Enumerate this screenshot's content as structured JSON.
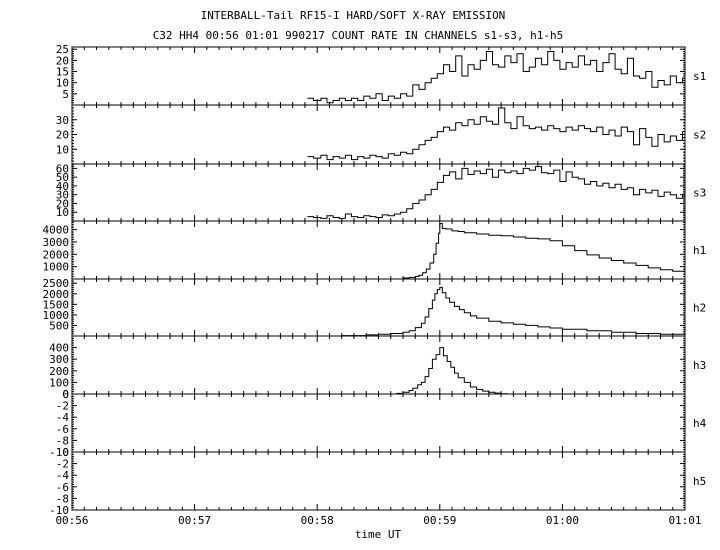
{
  "titles": {
    "line1": "INTERBALL-Tail RF15-I HARD/SOFT X-RAY EMISSION",
    "line2": "C32 HH4 00:56 01:01 990217  COUNT RATE IN CHANNELS s1-s3, h1-h5"
  },
  "chart_data": {
    "type": "line",
    "style": "stepped",
    "title": "INTERBALL-Tail RF15-I HARD/SOFT X-RAY EMISSION",
    "subtitle": "C32 HH4 00:56 01:01 990217  COUNT RATE IN CHANNELS s1-s3, h1-h5",
    "xlabel": "time UT",
    "x_unit": "minutes after 00:56 UT",
    "xlim": [
      0,
      5
    ],
    "x_ticks": [
      {
        "value": 0,
        "label": "00:56"
      },
      {
        "value": 1,
        "label": "00:57"
      },
      {
        "value": 2,
        "label": "00:58"
      },
      {
        "value": 3,
        "label": "00:59"
      },
      {
        "value": 4,
        "label": "01:00"
      },
      {
        "value": 5,
        "label": "01:01"
      }
    ],
    "grid": false,
    "legend": "panel labels at right",
    "line_color": "#000000",
    "panels": [
      {
        "name": "s1",
        "ylim": [
          0,
          26
        ],
        "y_ticks": [
          5,
          10,
          15,
          20,
          25
        ],
        "x": [
          1.92,
          1.97,
          2.03,
          2.08,
          2.13,
          2.18,
          2.23,
          2.28,
          2.33,
          2.38,
          2.43,
          2.48,
          2.53,
          2.58,
          2.63,
          2.68,
          2.73,
          2.78,
          2.83,
          2.88,
          2.93,
          2.98,
          3.03,
          3.08,
          3.13,
          3.18,
          3.23,
          3.28,
          3.33,
          3.38,
          3.43,
          3.48,
          3.53,
          3.58,
          3.63,
          3.68,
          3.73,
          3.78,
          3.83,
          3.88,
          3.93,
          3.98,
          4.03,
          4.08,
          4.13,
          4.18,
          4.23,
          4.28,
          4.33,
          4.38,
          4.43,
          4.48,
          4.53,
          4.58,
          4.63,
          4.68,
          4.73,
          4.78,
          4.83,
          4.88,
          4.93,
          4.98
        ],
        "y": [
          3,
          2,
          3,
          1,
          2,
          3,
          2,
          3,
          2,
          4,
          3,
          5,
          2,
          4,
          3,
          5,
          4,
          9,
          7,
          10,
          12,
          14,
          18,
          15,
          22,
          13,
          18,
          16,
          20,
          24,
          18,
          17,
          22,
          19,
          23,
          15,
          17,
          21,
          18,
          24,
          20,
          16,
          19,
          17,
          22,
          18,
          20,
          15,
          19,
          23,
          16,
          14,
          21,
          13,
          12,
          15,
          8,
          11,
          9,
          13,
          10,
          12
        ]
      },
      {
        "name": "s2",
        "ylim": [
          0,
          40
        ],
        "y_ticks": [
          10,
          20,
          30
        ],
        "x": [
          1.92,
          1.97,
          2.03,
          2.08,
          2.13,
          2.18,
          2.23,
          2.28,
          2.33,
          2.38,
          2.43,
          2.48,
          2.53,
          2.58,
          2.63,
          2.68,
          2.73,
          2.78,
          2.83,
          2.88,
          2.93,
          2.98,
          3.03,
          3.08,
          3.13,
          3.18,
          3.23,
          3.28,
          3.33,
          3.38,
          3.43,
          3.48,
          3.53,
          3.58,
          3.63,
          3.68,
          3.73,
          3.78,
          3.83,
          3.88,
          3.93,
          3.98,
          4.03,
          4.08,
          4.13,
          4.18,
          4.23,
          4.28,
          4.33,
          4.38,
          4.43,
          4.48,
          4.53,
          4.58,
          4.63,
          4.68,
          4.73,
          4.78,
          4.83,
          4.88,
          4.93,
          4.98
        ],
        "y": [
          5,
          4,
          6,
          3,
          5,
          4,
          6,
          3,
          5,
          4,
          6,
          5,
          4,
          7,
          6,
          8,
          7,
          10,
          13,
          16,
          18,
          22,
          25,
          23,
          28,
          26,
          30,
          27,
          32,
          29,
          27,
          38,
          28,
          24,
          32,
          26,
          24,
          25,
          23,
          26,
          24,
          22,
          25,
          23,
          26,
          24,
          22,
          25,
          20,
          23,
          19,
          25,
          22,
          13,
          24,
          18,
          12,
          20,
          15,
          19,
          16,
          22
        ]
      },
      {
        "name": "s3",
        "ylim": [
          0,
          65
        ],
        "y_ticks": [
          10,
          20,
          30,
          40,
          50,
          60
        ],
        "x": [
          1.92,
          1.97,
          2.03,
          2.08,
          2.13,
          2.18,
          2.23,
          2.28,
          2.33,
          2.38,
          2.43,
          2.48,
          2.53,
          2.58,
          2.63,
          2.68,
          2.73,
          2.78,
          2.83,
          2.88,
          2.93,
          2.98,
          3.03,
          3.08,
          3.13,
          3.18,
          3.23,
          3.28,
          3.33,
          3.38,
          3.43,
          3.48,
          3.53,
          3.58,
          3.63,
          3.68,
          3.73,
          3.78,
          3.83,
          3.88,
          3.93,
          3.98,
          4.03,
          4.08,
          4.13,
          4.18,
          4.23,
          4.28,
          4.33,
          4.38,
          4.43,
          4.48,
          4.53,
          4.58,
          4.63,
          4.68,
          4.73,
          4.78,
          4.83,
          4.88,
          4.93,
          4.98
        ],
        "y": [
          5,
          4,
          3,
          6,
          4,
          3,
          8,
          5,
          4,
          6,
          5,
          4,
          7,
          6,
          8,
          10,
          14,
          20,
          24,
          30,
          36,
          44,
          52,
          56,
          48,
          60,
          53,
          57,
          54,
          59,
          50,
          58,
          55,
          57,
          54,
          60,
          58,
          62,
          55,
          54,
          58,
          45,
          56,
          50,
          48,
          42,
          45,
          40,
          43,
          38,
          42,
          36,
          38,
          30,
          36,
          32,
          35,
          28,
          33,
          30,
          26,
          30
        ]
      },
      {
        "name": "h1",
        "ylim": [
          0,
          4700
        ],
        "y_ticks": [
          1000,
          2000,
          3000,
          4000
        ],
        "x": [
          2.7,
          2.75,
          2.8,
          2.83,
          2.86,
          2.89,
          2.92,
          2.95,
          2.97,
          2.99,
          3.0,
          3.02,
          3.05,
          3.1,
          3.15,
          3.2,
          3.3,
          3.4,
          3.5,
          3.6,
          3.7,
          3.8,
          3.9,
          4.0,
          4.1,
          4.2,
          4.3,
          4.4,
          4.5,
          4.6,
          4.7,
          4.8,
          4.9,
          5.0
        ],
        "y": [
          80,
          130,
          200,
          300,
          500,
          800,
          1300,
          2000,
          2900,
          3700,
          4500,
          4100,
          4050,
          3900,
          3850,
          3750,
          3650,
          3550,
          3500,
          3400,
          3300,
          3250,
          3100,
          2700,
          2300,
          1950,
          1700,
          1500,
          1300,
          1100,
          900,
          750,
          620,
          560
        ]
      },
      {
        "name": "h2",
        "ylim": [
          0,
          2700
        ],
        "y_ticks": [
          500,
          1000,
          1500,
          2000,
          2500
        ],
        "x": [
          2.0,
          2.2,
          2.4,
          2.5,
          2.6,
          2.7,
          2.75,
          2.8,
          2.85,
          2.88,
          2.91,
          2.94,
          2.96,
          2.98,
          3.0,
          3.02,
          3.05,
          3.08,
          3.12,
          3.16,
          3.2,
          3.25,
          3.3,
          3.4,
          3.5,
          3.6,
          3.7,
          3.8,
          3.9,
          4.0,
          4.2,
          4.4,
          4.6,
          4.8,
          5.0
        ],
        "y": [
          0,
          20,
          50,
          80,
          120,
          180,
          250,
          400,
          600,
          900,
          1300,
          1700,
          2000,
          2200,
          2300,
          2050,
          1800,
          1600,
          1400,
          1250,
          1100,
          950,
          850,
          700,
          620,
          560,
          500,
          430,
          380,
          320,
          250,
          180,
          120,
          80,
          40
        ]
      },
      {
        "name": "h3",
        "ylim": [
          0,
          500
        ],
        "y_ticks": [
          0,
          100,
          200,
          300,
          400
        ],
        "x": [
          2.6,
          2.65,
          2.7,
          2.75,
          2.78,
          2.82,
          2.85,
          2.88,
          2.91,
          2.94,
          2.97,
          3.0,
          3.03,
          3.06,
          3.09,
          3.12,
          3.15,
          3.2,
          3.25,
          3.3,
          3.35,
          3.4,
          3.45,
          3.5,
          3.55
        ],
        "y": [
          0,
          5,
          15,
          30,
          50,
          80,
          100,
          150,
          220,
          300,
          340,
          400,
          330,
          280,
          230,
          180,
          140,
          100,
          60,
          40,
          25,
          15,
          8,
          3,
          0
        ]
      },
      {
        "name": "h4",
        "ylim": [
          -10,
          0
        ],
        "y_ticks": [
          -10,
          -8,
          -6,
          -4,
          -2,
          0
        ],
        "x": [],
        "y": []
      },
      {
        "name": "h5",
        "ylim": [
          -10,
          0
        ],
        "y_ticks": [
          -10,
          -8,
          -6,
          -4,
          -2,
          0
        ],
        "x": [],
        "y": []
      }
    ]
  }
}
